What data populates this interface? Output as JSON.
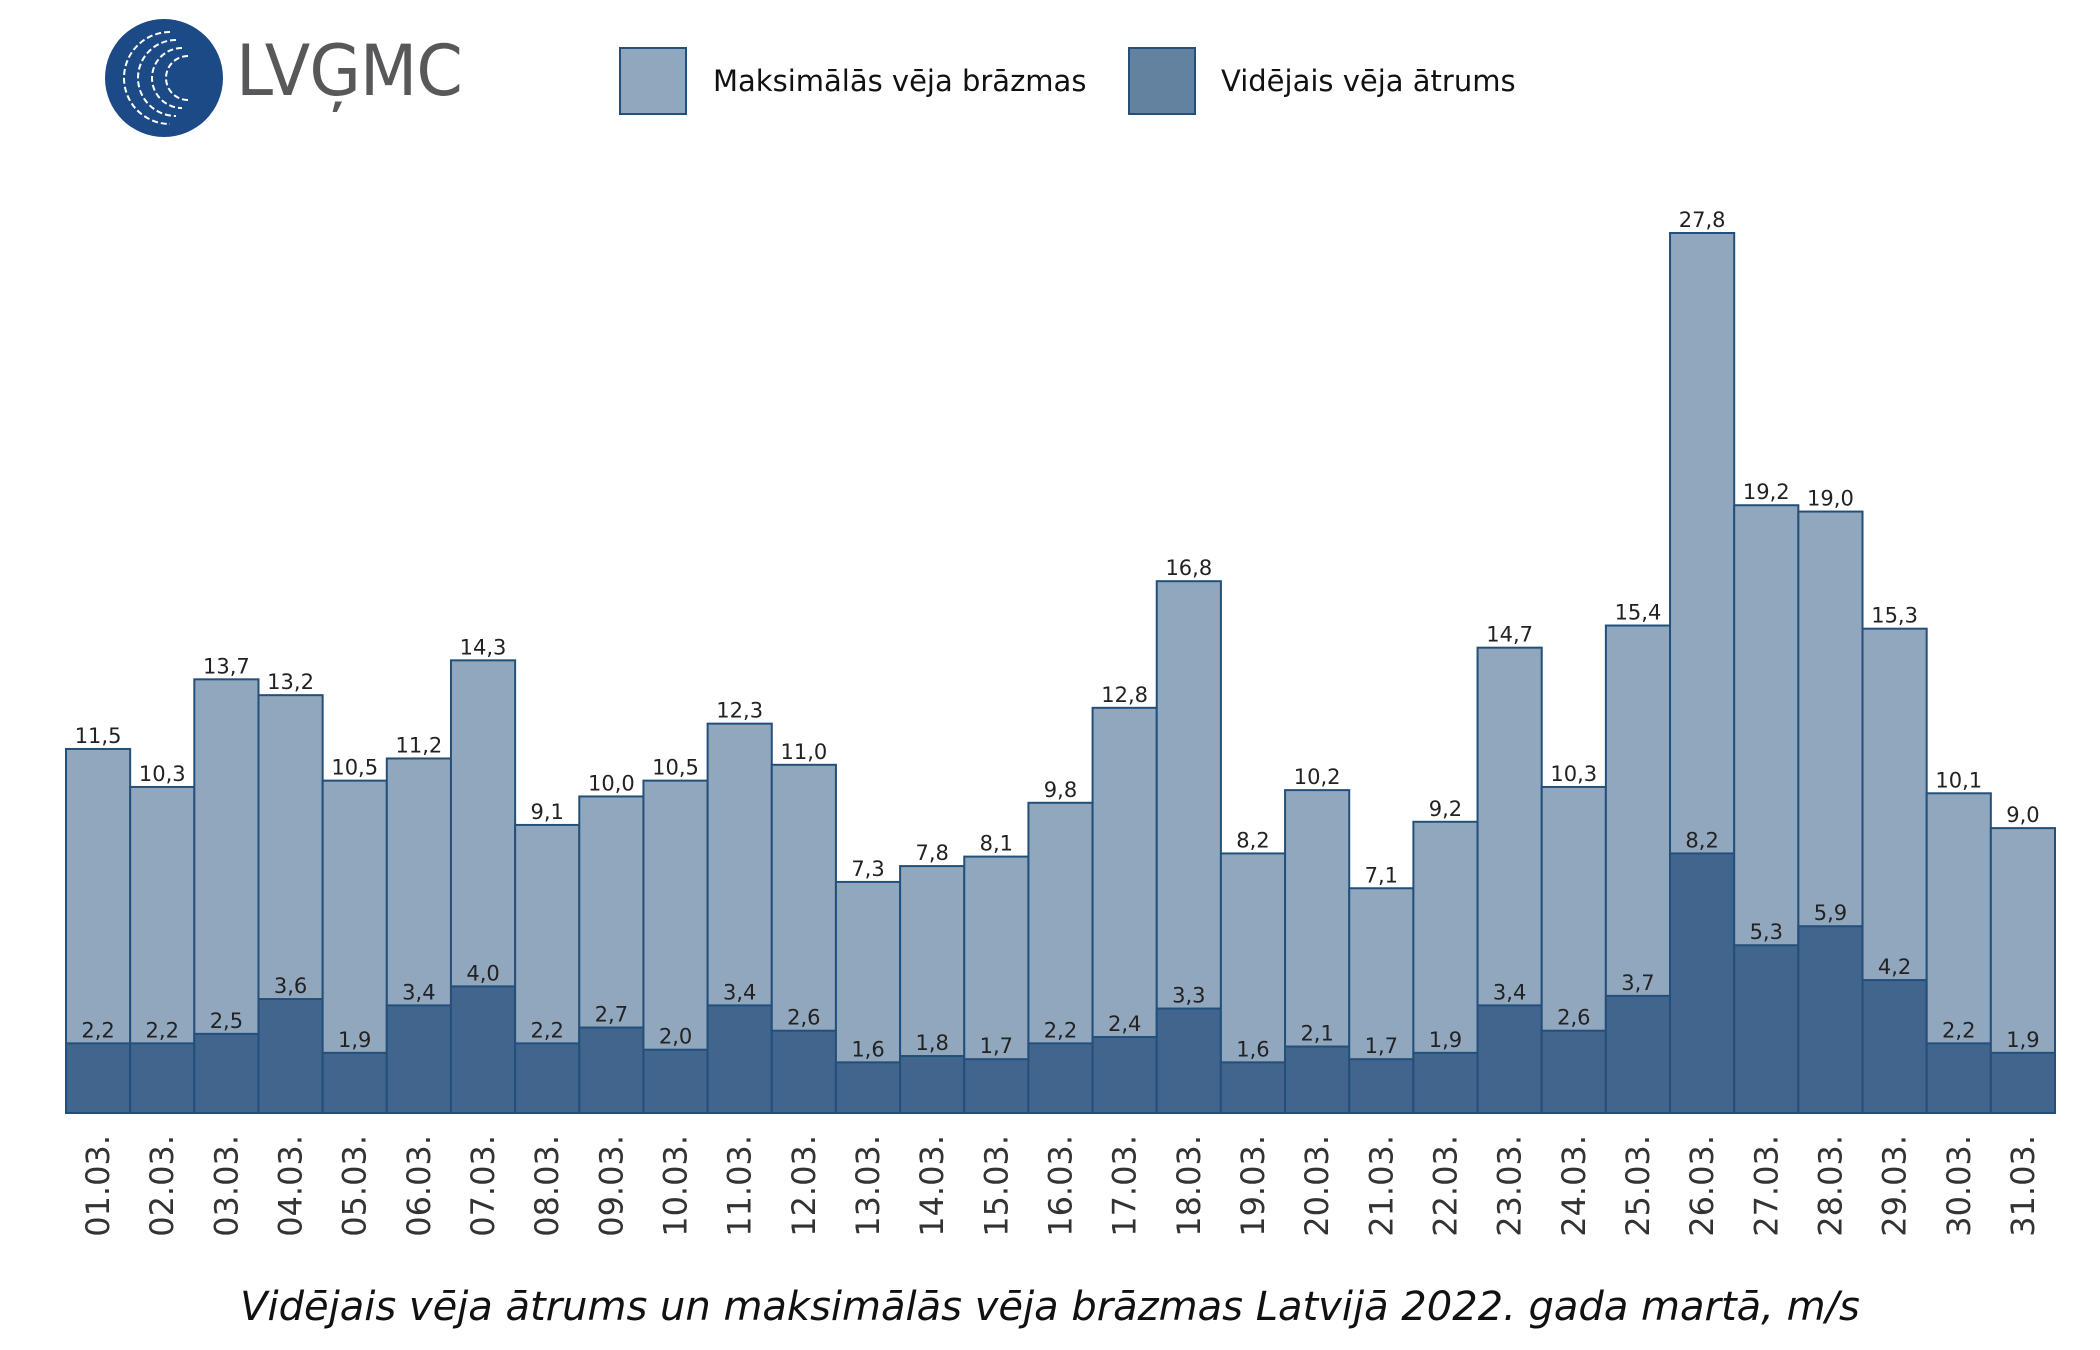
{
  "logo": {
    "text": "LVĢMC"
  },
  "legend": [
    {
      "label": "Maksimālās vēja brāzmas",
      "color": "#91a7bd"
    },
    {
      "label": "Vidējais vēja ātrums",
      "color": "#62829f"
    }
  ],
  "colors": {
    "max_fill": "#91a7bd",
    "avg_fill": "#41658c",
    "outline": "#23507a"
  },
  "chart_data": {
    "type": "bar",
    "title": "Vidējais vēja ātrums un maksimālās vēja brāzmas Latvijā 2022. gada martā, m/s",
    "categories": [
      "01.03.",
      "02.03.",
      "03.03.",
      "04.03.",
      "05.03.",
      "06.03.",
      "07.03.",
      "08.03.",
      "09.03.",
      "10.03.",
      "11.03.",
      "12.03.",
      "13.03.",
      "14.03.",
      "15.03.",
      "16.03.",
      "17.03.",
      "18.03.",
      "19.03.",
      "20.03.",
      "21.03.",
      "22.03.",
      "23.03.",
      "24.03.",
      "25.03.",
      "26.03.",
      "27.03.",
      "28.03.",
      "29.03.",
      "30.03.",
      "31.03."
    ],
    "series": [
      {
        "name": "Maksimālās vēja brāzmas",
        "values": [
          11.5,
          10.3,
          13.7,
          13.2,
          10.5,
          11.2,
          14.3,
          9.1,
          10.0,
          10.5,
          12.3,
          11.0,
          7.3,
          7.8,
          8.1,
          9.8,
          12.8,
          16.8,
          8.2,
          10.2,
          7.1,
          9.2,
          14.7,
          10.3,
          15.4,
          27.8,
          19.2,
          19.0,
          15.3,
          10.1,
          9.0
        ]
      },
      {
        "name": "Vidējais vēja ātrums",
        "values": [
          2.2,
          2.2,
          2.5,
          3.6,
          1.9,
          3.4,
          4.0,
          2.2,
          2.7,
          2.0,
          3.4,
          2.6,
          1.6,
          1.8,
          1.7,
          2.2,
          2.4,
          3.3,
          1.6,
          2.1,
          1.7,
          1.9,
          3.4,
          2.6,
          3.7,
          8.2,
          5.3,
          5.9,
          4.2,
          2.2,
          1.9
        ]
      }
    ],
    "ylim": [
      0,
      27.8
    ],
    "grid": false,
    "legend": "top",
    "stacked": false,
    "overlapping": true,
    "data_labels": true,
    "decimal_separator": ","
  }
}
